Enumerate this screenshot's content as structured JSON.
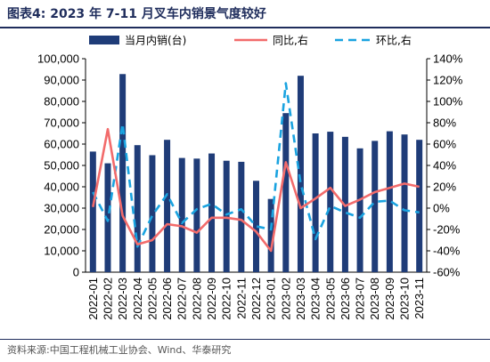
{
  "title": "图表4:  2023 年 7-11 月叉车内销景气度较好",
  "source": "资料来源:中国工程机械工业协会、Wind、华泰研究",
  "chart_data": {
    "type": "bar",
    "categories": [
      "2022-01",
      "2022-02",
      "2022-03",
      "2022-04",
      "2022-05",
      "2022-06",
      "2022-07",
      "2022-08",
      "2022-09",
      "2022-10",
      "2022-11",
      "2022-12",
      "2023-01",
      "2023-02",
      "2023-03",
      "2023-04",
      "2023-05",
      "2023-06",
      "2023-07",
      "2023-08",
      "2023-09",
      "2023-10",
      "2023-11"
    ],
    "left_axis": {
      "ylim": [
        0,
        100000
      ],
      "ticks": [
        "0",
        "10,000",
        "20,000",
        "30,000",
        "40,000",
        "50,000",
        "60,000",
        "70,000",
        "80,000",
        "90,000",
        "100,000"
      ]
    },
    "right_axis": {
      "ylim": [
        -60,
        140
      ],
      "ticks": [
        "-60%",
        "-40%",
        "-20%",
        "0%",
        "20%",
        "40%",
        "60%",
        "80%",
        "100%",
        "120%",
        "140%"
      ]
    },
    "series": [
      {
        "name": "当月内销(台)",
        "kind": "bar",
        "axis": "left",
        "color": "#1f3c78",
        "values": [
          56500,
          51000,
          92800,
          59500,
          54800,
          62000,
          53500,
          53200,
          55600,
          52200,
          51700,
          42800,
          34300,
          74500,
          92000,
          65000,
          65800,
          63400,
          58000,
          61500,
          66000,
          64500,
          62000
        ]
      },
      {
        "name": "同比,右",
        "kind": "line",
        "axis": "right",
        "color": "#f26b6b",
        "values": [
          1,
          74,
          -7,
          -34,
          -30,
          -15,
          -17,
          -23,
          -9,
          -9,
          -11,
          -22,
          -40,
          43,
          0,
          9,
          19,
          2,
          8,
          15,
          19,
          23,
          20
        ]
      },
      {
        "name": "环比,右",
        "kind": "dashed-line",
        "axis": "right",
        "color": "#1aa3e0",
        "values": [
          15,
          -12,
          79,
          -36,
          -7,
          13,
          -14,
          -1,
          4,
          -6,
          -1,
          -17,
          -20,
          117,
          23,
          -29,
          2,
          -4,
          -9,
          6,
          7,
          -2,
          -4
        ]
      }
    ],
    "legend_position": "top",
    "grid": false
  }
}
